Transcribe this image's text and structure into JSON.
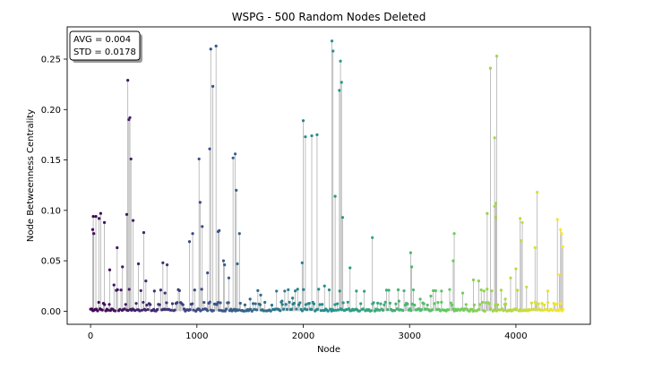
{
  "chart_data": {
    "type": "scatter",
    "title": "WSPG - 500 Random Nodes Deleted",
    "xlabel": "Node",
    "ylabel": "Node Betweenness Centrality",
    "xlim": [
      -220,
      4700
    ],
    "ylim": [
      -0.013,
      0.282
    ],
    "xticks": [
      0,
      1000,
      2000,
      3000,
      4000
    ],
    "yticks": [
      0.0,
      0.05,
      0.1,
      0.15,
      0.2,
      0.25
    ],
    "ytick_labels": [
      "0.00",
      "0.05",
      "0.10",
      "0.15",
      "0.20",
      "0.25"
    ],
    "grid": false,
    "stems": true,
    "colormap": "viridis",
    "x_max_node": 4450,
    "stats_box": {
      "avg_text": "AVG = 0.004",
      "std_text": "STD = 0.0178",
      "position": "top-left"
    },
    "points": [
      [
        20,
        0.081
      ],
      [
        25,
        0.094
      ],
      [
        30,
        0.077
      ],
      [
        50,
        0.094
      ],
      [
        80,
        0.092
      ],
      [
        95,
        0.097
      ],
      [
        130,
        0.088
      ],
      [
        180,
        0.041
      ],
      [
        220,
        0.026
      ],
      [
        250,
        0.063
      ],
      [
        300,
        0.044
      ],
      [
        350,
        0.229
      ],
      [
        360,
        0.19
      ],
      [
        370,
        0.192
      ],
      [
        380,
        0.151
      ],
      [
        340,
        0.096
      ],
      [
        400,
        0.09
      ],
      [
        450,
        0.047
      ],
      [
        500,
        0.078
      ],
      [
        520,
        0.03
      ],
      [
        680,
        0.048
      ],
      [
        720,
        0.046
      ],
      [
        930,
        0.069
      ],
      [
        960,
        0.077
      ],
      [
        1020,
        0.151
      ],
      [
        1030,
        0.108
      ],
      [
        1050,
        0.084
      ],
      [
        1120,
        0.161
      ],
      [
        1130,
        0.26
      ],
      [
        1150,
        0.223
      ],
      [
        1180,
        0.263
      ],
      [
        1200,
        0.079
      ],
      [
        1210,
        0.08
      ],
      [
        1340,
        0.152
      ],
      [
        1360,
        0.156
      ],
      [
        1370,
        0.12
      ],
      [
        1400,
        0.077
      ],
      [
        1380,
        0.047
      ],
      [
        1250,
        0.05
      ],
      [
        1990,
        0.048
      ],
      [
        2000,
        0.189
      ],
      [
        2020,
        0.173
      ],
      [
        2080,
        0.174
      ],
      [
        2130,
        0.175
      ],
      [
        2270,
        0.268
      ],
      [
        2280,
        0.258
      ],
      [
        2300,
        0.114
      ],
      [
        2340,
        0.219
      ],
      [
        2350,
        0.248
      ],
      [
        2360,
        0.227
      ],
      [
        2370,
        0.093
      ],
      [
        2440,
        0.043
      ],
      [
        2650,
        0.073
      ],
      [
        3010,
        0.058
      ],
      [
        3020,
        0.044
      ],
      [
        3420,
        0.077
      ],
      [
        3410,
        0.05
      ],
      [
        3600,
        0.031
      ],
      [
        3650,
        0.03
      ],
      [
        3730,
        0.097
      ],
      [
        3760,
        0.241
      ],
      [
        3800,
        0.104
      ],
      [
        3810,
        0.107
      ],
      [
        3820,
        0.253
      ],
      [
        3800,
        0.172
      ],
      [
        3810,
        0.093
      ],
      [
        4040,
        0.092
      ],
      [
        4060,
        0.088
      ],
      [
        4050,
        0.07
      ],
      [
        4200,
        0.118
      ],
      [
        4180,
        0.063
      ],
      [
        4390,
        0.091
      ],
      [
        4420,
        0.081
      ],
      [
        4430,
        0.077
      ],
      [
        4440,
        0.064
      ],
      [
        4410,
        0.036
      ],
      [
        4100,
        0.024
      ],
      [
        4000,
        0.042
      ],
      [
        3950,
        0.033
      ],
      [
        3700,
        0.02
      ],
      [
        600,
        0.02
      ],
      [
        700,
        0.018
      ],
      [
        1100,
        0.038
      ],
      [
        1260,
        0.046
      ],
      [
        1300,
        0.033
      ],
      [
        1500,
        0.012
      ],
      [
        1600,
        0.016
      ],
      [
        1800,
        0.01
      ],
      [
        1900,
        0.013
      ],
      [
        2200,
        0.025
      ],
      [
        2500,
        0.02
      ],
      [
        2700,
        0.008
      ],
      [
        2900,
        0.01
      ],
      [
        3100,
        0.012
      ],
      [
        3200,
        0.015
      ],
      [
        3300,
        0.02
      ],
      [
        3500,
        0.018
      ],
      [
        3900,
        0.012
      ],
      [
        4300,
        0.02
      ]
    ]
  }
}
